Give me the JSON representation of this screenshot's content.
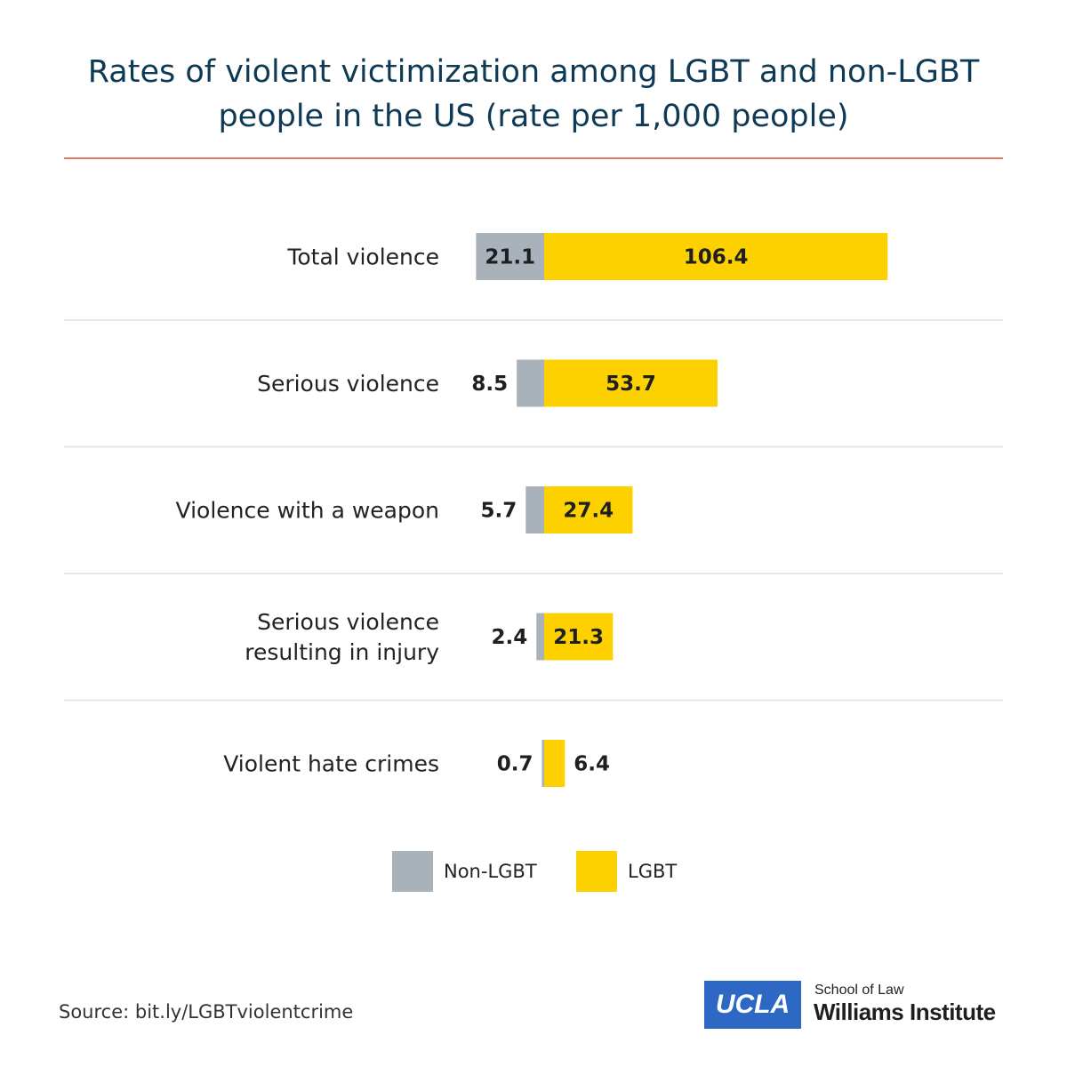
{
  "chart_data": {
    "type": "bar",
    "orientation": "horizontal-stacked",
    "title": "Rates of violent victimization among LGBT and non-LGBT people in the US (rate per 1,000 people)",
    "categories": [
      [
        "Total violence"
      ],
      [
        "Serious violence"
      ],
      [
        "Violence with a weapon"
      ],
      [
        "Serious violence",
        "resulting in injury"
      ],
      [
        "Violent hate crimes"
      ]
    ],
    "series": [
      {
        "name": "Non-LGBT",
        "color": "#a9b1ba",
        "values": [
          21.1,
          8.5,
          5.7,
          2.4,
          0.7
        ],
        "labels": [
          "21.1",
          "8.5",
          "5.7",
          "2.4",
          "0.7"
        ]
      },
      {
        "name": "LGBT",
        "color": "#fdd100",
        "values": [
          106.4,
          53.7,
          27.4,
          21.3,
          6.4
        ],
        "labels": [
          "106.4",
          "53.7",
          "27.4",
          "21.3",
          "6.4"
        ]
      }
    ],
    "legend": "bottom-center",
    "grid": false
  },
  "footer": {
    "source": "Source: bit.ly/LGBTviolentcrime",
    "logo_ucla": "UCLA",
    "logo_school": "School of Law",
    "logo_institute": "Williams Institute"
  }
}
